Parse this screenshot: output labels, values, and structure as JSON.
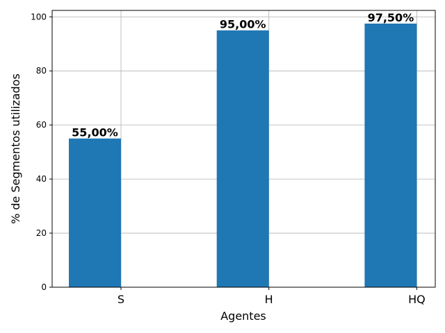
{
  "chart_data": {
    "type": "bar",
    "categories": [
      "S",
      "H",
      "HQ"
    ],
    "values": [
      55.0,
      95.0,
      97.5
    ],
    "value_labels": [
      "55,00%",
      "95,00%",
      "97,50%"
    ],
    "title": "",
    "xlabel": "Agentes",
    "ylabel": "% de Segmentos utilizados",
    "ylim": [
      0,
      102.375
    ],
    "yticks": [
      0,
      20,
      40,
      60,
      80,
      100
    ],
    "grid": true,
    "bar_color": "#1f77b4",
    "grid_color": "#b0b0b0"
  }
}
